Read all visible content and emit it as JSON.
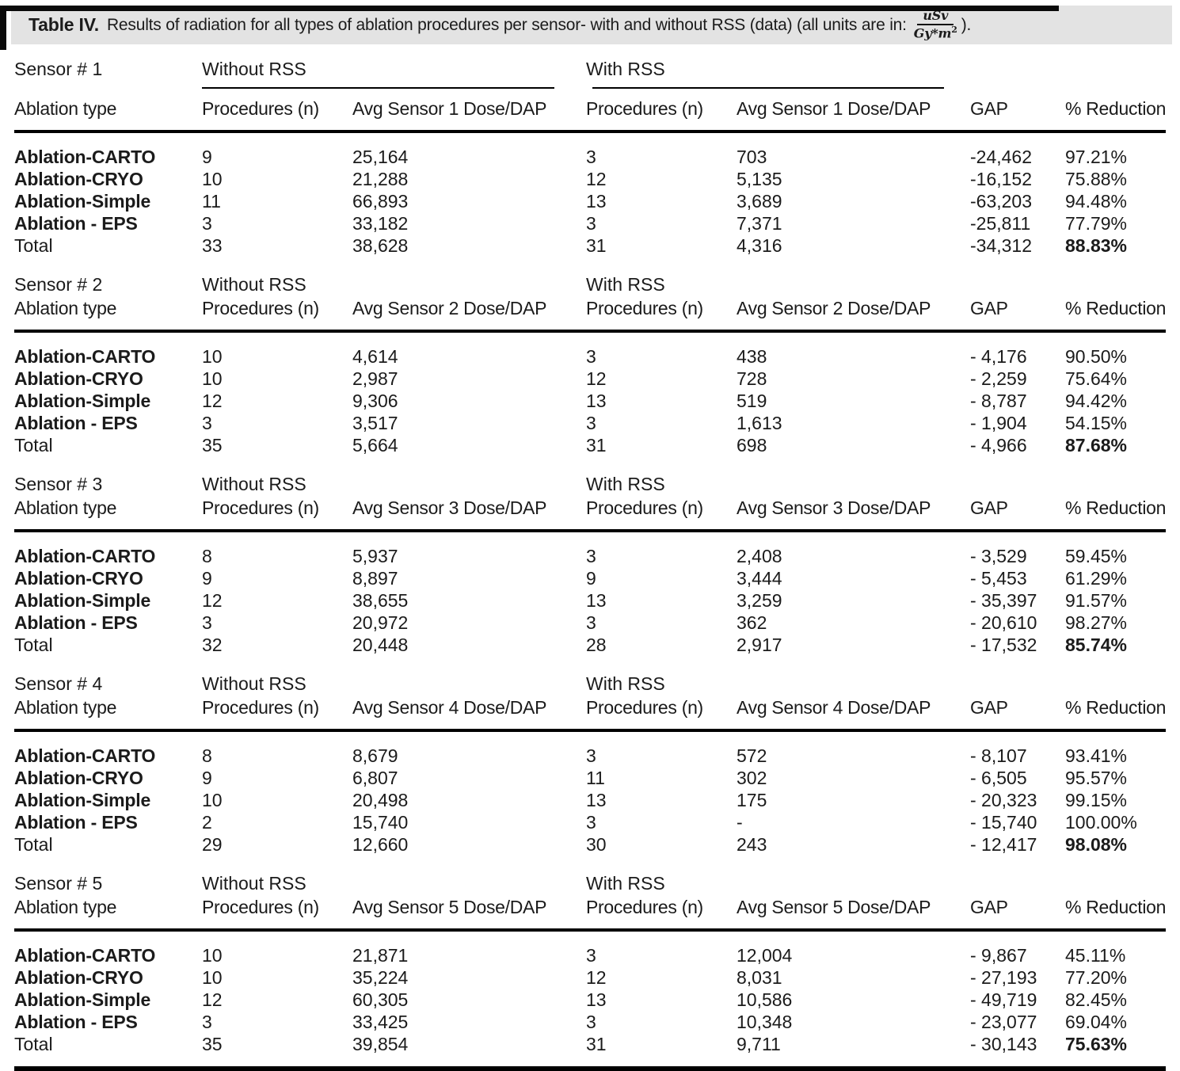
{
  "caption": {
    "label": "Table IV.",
    "text": "Results of radiation for all types of ablation procedures per sensor- with and without RSS (data) (all units are in:",
    "fraction": {
      "numerator": "uSv",
      "denominator": "Gy*m",
      "exponent": "2"
    },
    "suffix": ")."
  },
  "sections": [
    {
      "sensor": "Sensor # 1",
      "without_label": "Without RSS",
      "with_label": "With RSS",
      "group_underlines": true,
      "headers": [
        "Ablation type",
        "Procedures (n)",
        "Avg Sensor 1 Dose/DAP",
        "Procedures (n)",
        "Avg Sensor 1 Dose/DAP",
        "GAP",
        "% Reduction"
      ],
      "rows": [
        {
          "label": "Ablation-CARTO",
          "bold_label": true,
          "bold_reduction": false,
          "values": [
            "9",
            "25,164",
            "3",
            "703",
            "-24,462",
            "97.21%"
          ]
        },
        {
          "label": "Ablation-CRYO",
          "bold_label": true,
          "bold_reduction": false,
          "values": [
            "10",
            "21,288",
            "12",
            "5,135",
            "-16,152",
            "75.88%"
          ]
        },
        {
          "label": "Ablation-Simple",
          "bold_label": true,
          "bold_reduction": false,
          "values": [
            "11",
            "66,893",
            "13",
            "3,689",
            "-63,203",
            "94.48%"
          ]
        },
        {
          "label": "Ablation - EPS",
          "bold_label": true,
          "bold_reduction": false,
          "values": [
            "3",
            "33,182",
            "3",
            "7,371",
            "-25,811",
            "77.79%"
          ]
        },
        {
          "label": "Total",
          "bold_label": false,
          "bold_reduction": true,
          "values": [
            "33",
            "38,628",
            "31",
            "4,316",
            "-34,312",
            "88.83%"
          ]
        }
      ]
    },
    {
      "sensor": "Sensor # 2",
      "without_label": "Without RSS",
      "with_label": "With RSS",
      "group_underlines": false,
      "headers": [
        "Ablation type",
        "Procedures (n)",
        "Avg Sensor 2 Dose/DAP",
        "Procedures (n)",
        "Avg Sensor 2 Dose/DAP",
        "GAP",
        "% Reduction"
      ],
      "rows": [
        {
          "label": "Ablation-CARTO",
          "bold_label": true,
          "bold_reduction": false,
          "values": [
            "10",
            "4,614",
            "3",
            "438",
            "- 4,176",
            "90.50%"
          ]
        },
        {
          "label": "Ablation-CRYO",
          "bold_label": true,
          "bold_reduction": false,
          "values": [
            "10",
            "2,987",
            "12",
            "728",
            "- 2,259",
            "75.64%"
          ]
        },
        {
          "label": "Ablation-Simple",
          "bold_label": true,
          "bold_reduction": false,
          "values": [
            "12",
            "9,306",
            "13",
            "519",
            "- 8,787",
            "94.42%"
          ]
        },
        {
          "label": "Ablation - EPS",
          "bold_label": true,
          "bold_reduction": false,
          "values": [
            "3",
            "3,517",
            "3",
            "1,613",
            "- 1,904",
            "54.15%"
          ]
        },
        {
          "label": "Total",
          "bold_label": false,
          "bold_reduction": true,
          "values": [
            "35",
            "5,664",
            "31",
            "698",
            "- 4,966",
            "87.68%"
          ]
        }
      ]
    },
    {
      "sensor": "Sensor # 3",
      "without_label": "Without RSS",
      "with_label": "With RSS",
      "group_underlines": false,
      "headers": [
        "Ablation type",
        "Procedures (n)",
        "Avg Sensor 3 Dose/DAP",
        "Procedures (n)",
        "Avg Sensor 3 Dose/DAP",
        "GAP",
        "% Reduction"
      ],
      "rows": [
        {
          "label": "Ablation-CARTO",
          "bold_label": true,
          "bold_reduction": false,
          "values": [
            "8",
            "5,937",
            "3",
            "2,408",
            "- 3,529",
            "59.45%"
          ]
        },
        {
          "label": "Ablation-CRYO",
          "bold_label": true,
          "bold_reduction": false,
          "values": [
            "9",
            "8,897",
            "9",
            "3,444",
            "- 5,453",
            "61.29%"
          ]
        },
        {
          "label": "Ablation-Simple",
          "bold_label": true,
          "bold_reduction": false,
          "values": [
            "12",
            "38,655",
            "13",
            "3,259",
            "- 35,397",
            "91.57%"
          ]
        },
        {
          "label": "Ablation - EPS",
          "bold_label": true,
          "bold_reduction": false,
          "values": [
            "3",
            "20,972",
            "3",
            "362",
            "- 20,610",
            "98.27%"
          ]
        },
        {
          "label": "Total",
          "bold_label": false,
          "bold_reduction": true,
          "values": [
            "32",
            "20,448",
            "28",
            "2,917",
            "- 17,532",
            "85.74%"
          ]
        }
      ]
    },
    {
      "sensor": "Sensor # 4",
      "without_label": "Without RSS",
      "with_label": "With RSS",
      "group_underlines": false,
      "headers": [
        "Ablation type",
        "Procedures (n)",
        "Avg Sensor 4 Dose/DAP",
        "Procedures (n)",
        "Avg Sensor 4 Dose/DAP",
        "GAP",
        "% Reduction"
      ],
      "rows": [
        {
          "label": "Ablation-CARTO",
          "bold_label": true,
          "bold_reduction": false,
          "values": [
            "8",
            "8,679",
            "3",
            "572",
            "- 8,107",
            "93.41%"
          ]
        },
        {
          "label": "Ablation-CRYO",
          "bold_label": true,
          "bold_reduction": false,
          "values": [
            "9",
            "6,807",
            "11",
            "302",
            "- 6,505",
            "95.57%"
          ]
        },
        {
          "label": "Ablation-Simple",
          "bold_label": true,
          "bold_reduction": false,
          "values": [
            "10",
            "20,498",
            "13",
            "175",
            "- 20,323",
            "99.15%"
          ]
        },
        {
          "label": "Ablation - EPS",
          "bold_label": true,
          "bold_reduction": false,
          "values": [
            "2",
            "15,740",
            "3",
            "-",
            "- 15,740",
            "100.00%"
          ]
        },
        {
          "label": "Total",
          "bold_label": false,
          "bold_reduction": true,
          "values": [
            "29",
            "12,660",
            "30",
            "243",
            "- 12,417",
            "98.08%"
          ]
        }
      ]
    },
    {
      "sensor": "Sensor # 5",
      "without_label": "Without RSS",
      "with_label": "With RSS",
      "group_underlines": false,
      "headers": [
        "Ablation type",
        "Procedures (n)",
        "Avg Sensor 5 Dose/DAP",
        "Procedures (n)",
        "Avg Sensor 5 Dose/DAP",
        "GAP",
        "% Reduction"
      ],
      "rows": [
        {
          "label": "Ablation-CARTO",
          "bold_label": true,
          "bold_reduction": false,
          "values": [
            "10",
            "21,871",
            "3",
            "12,004",
            "- 9,867",
            "45.11%"
          ]
        },
        {
          "label": "Ablation-CRYO",
          "bold_label": true,
          "bold_reduction": false,
          "values": [
            "10",
            "35,224",
            "12",
            "8,031",
            "- 27,193",
            "77.20%"
          ]
        },
        {
          "label": "Ablation-Simple",
          "bold_label": true,
          "bold_reduction": false,
          "values": [
            "12",
            "60,305",
            "13",
            "10,586",
            "- 49,719",
            "82.45%"
          ]
        },
        {
          "label": "Ablation - EPS",
          "bold_label": true,
          "bold_reduction": false,
          "values": [
            "3",
            "33,425",
            "3",
            "10,348",
            "- 23,077",
            "69.04%"
          ]
        },
        {
          "label": "Total",
          "bold_label": false,
          "bold_reduction": true,
          "values": [
            "35",
            "39,854",
            "31",
            "9,711",
            "- 30,143",
            "75.63%"
          ]
        }
      ]
    }
  ]
}
